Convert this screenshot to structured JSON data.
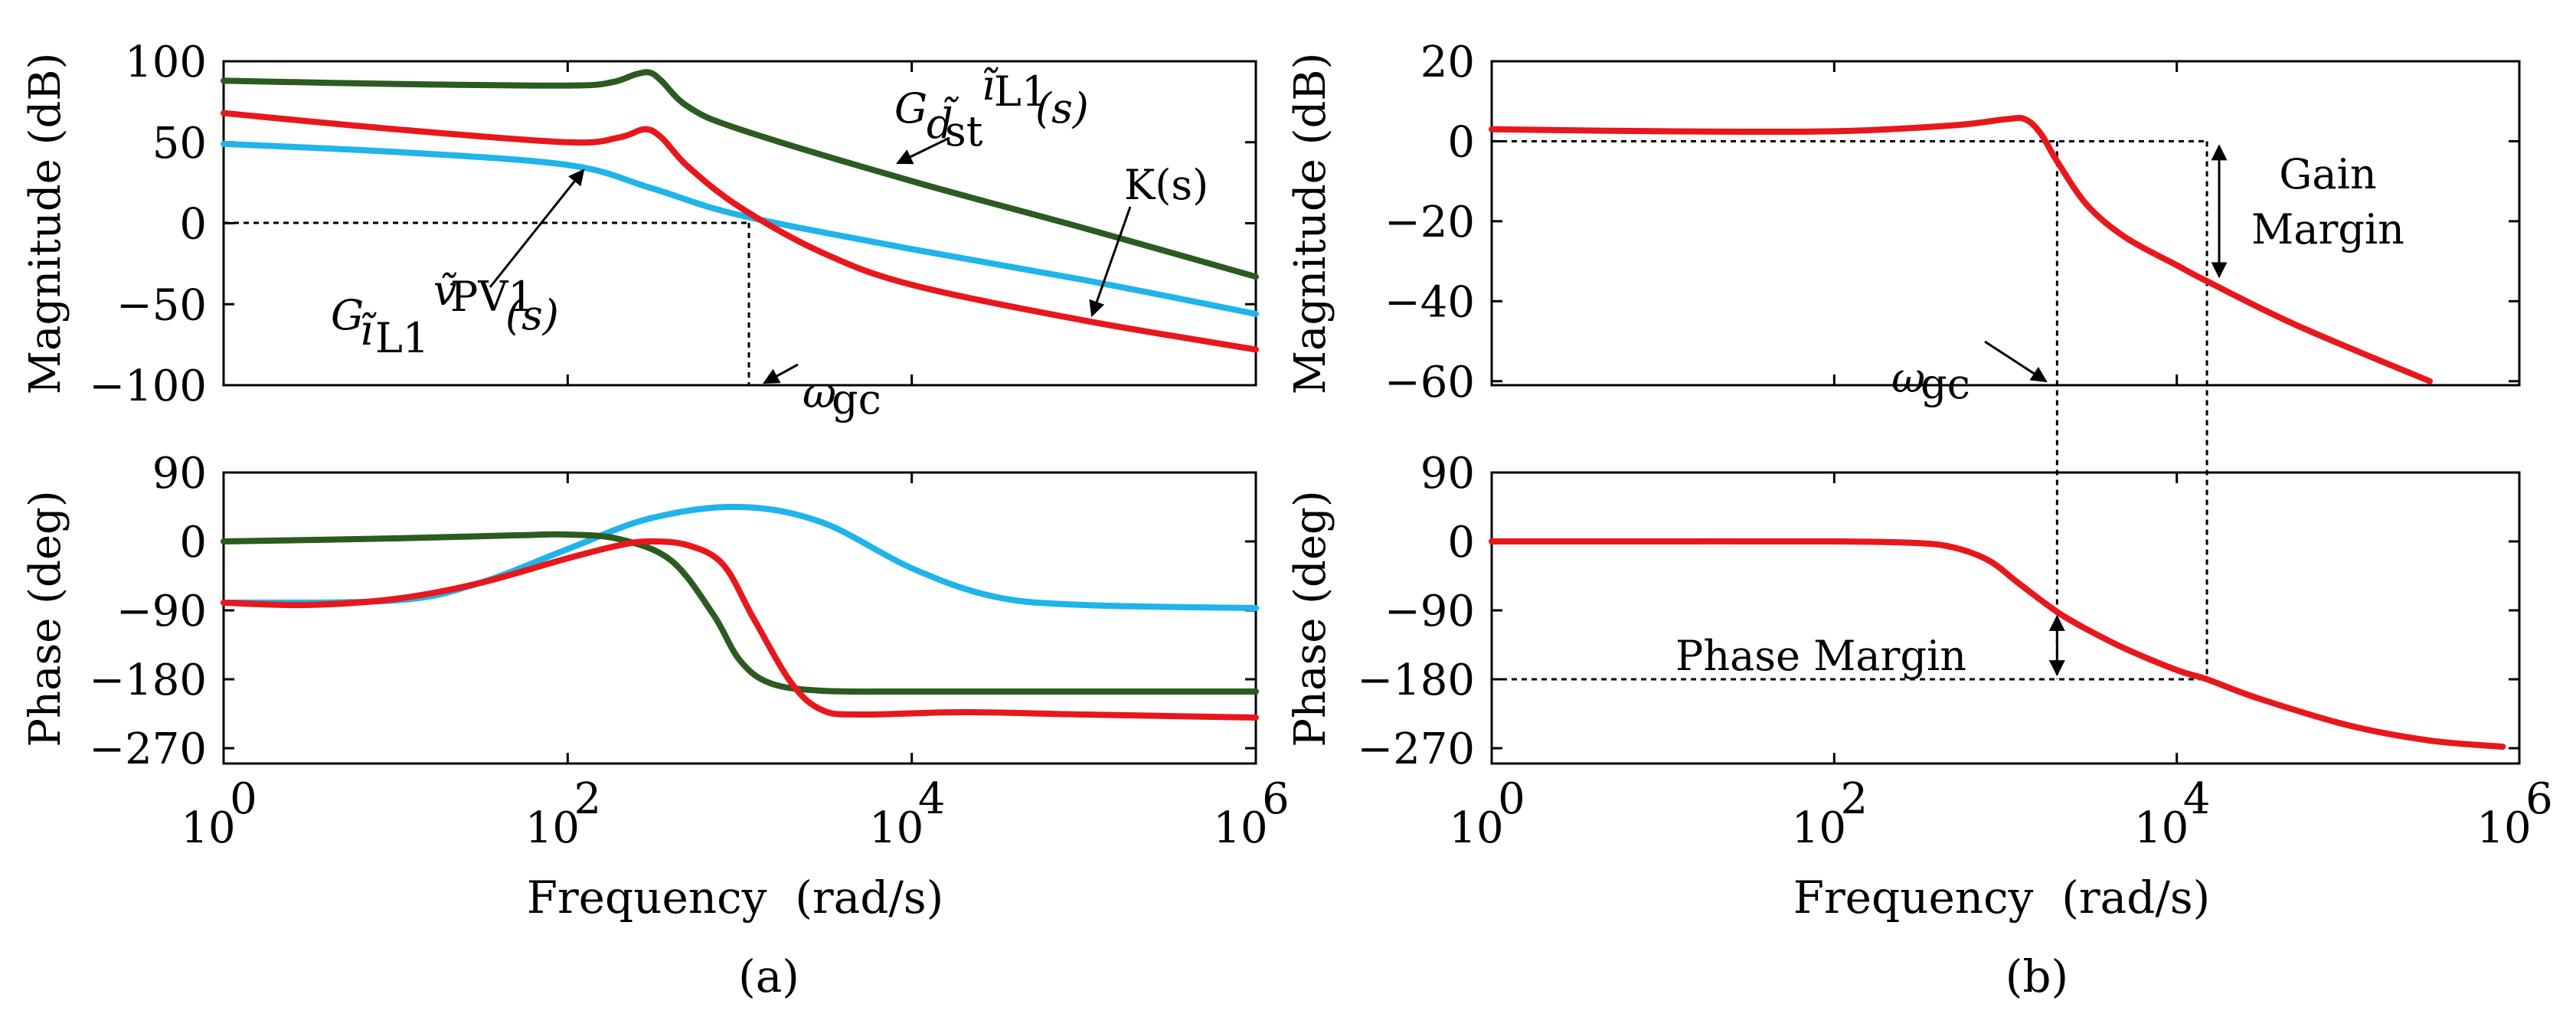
{
  "colors": {
    "K": "#1fb4ea",
    "G_il1_vpv1": "#e8171c",
    "G_dst_il1": "#2b5b21",
    "loop": "#e8171c"
  },
  "chart_data": [
    {
      "type": "line",
      "panel": "(a)",
      "title": "",
      "xscale": "log",
      "xlabel": "Frequency  (rad/s)",
      "xticks": [
        1,
        100,
        10000,
        1000000
      ],
      "xtick_labels": [
        {
          "base": "10",
          "exp": "0"
        },
        {
          "base": "10",
          "exp": "2"
        },
        {
          "base": "10",
          "exp": "4"
        },
        {
          "base": "10",
          "exp": "6"
        }
      ],
      "xlim": [
        1,
        1000000
      ],
      "subplots": [
        {
          "name": "magnitude",
          "ylabel": "Magnitude (dB)",
          "ylim": [
            -100,
            100
          ],
          "yticks": [
            100,
            50,
            0,
            -50,
            -100
          ],
          "ytick_labels": [
            "100",
            "50",
            "0",
            "−50",
            "−100"
          ],
          "series": [
            {
              "name": "G_dst_il1",
              "color_key": "G_dst_il1",
              "x": [
                1,
                10,
                100,
                180,
                250,
                300,
                350,
                500,
                1000,
                10000,
                100000,
                1000000
              ],
              "y": [
                88,
                86,
                85,
                87,
                92,
                93,
                88,
                72,
                58,
                26,
                -3,
                -33
              ]
            },
            {
              "name": "G_il1_vpv1",
              "color_key": "G_il1_vpv1",
              "x": [
                1,
                10,
                100,
                200,
                280,
                350,
                500,
                1000,
                3000,
                10000,
                100000,
                1000000
              ],
              "y": [
                68,
                58,
                50,
                53,
                58,
                53,
                35,
                10,
                -18,
                -38,
                -60,
                -78
              ]
            },
            {
              "name": "K",
              "color_key": "K",
              "x": [
                1,
                10,
                100,
                300,
                1000,
                10000,
                100000,
                1000000
              ],
              "y": [
                49,
                44,
                36,
                22,
                5,
                -16,
                -35,
                -56
              ]
            }
          ],
          "reference": {
            "y": 0,
            "x_end": 1100,
            "vertical_x": 1100
          }
        },
        {
          "name": "phase",
          "ylabel": "Phase (deg)",
          "ylim": [
            -290,
            90
          ],
          "yticks": [
            90,
            0,
            -90,
            -180,
            -270
          ],
          "ytick_labels": [
            "90",
            "0",
            "−90",
            "−180",
            "−270"
          ],
          "series": [
            {
              "name": "G_dst_il1",
              "color_key": "G_dst_il1",
              "x": [
                1,
                10,
                50,
                100,
                200,
                400,
                700,
                1000,
                1500,
                3000,
                10000,
                100000,
                1000000
              ],
              "y": [
                0,
                4,
                8,
                9,
                3,
                -25,
                -95,
                -155,
                -185,
                -195,
                -196,
                -196,
                -196
              ]
            },
            {
              "name": "G_il1_vpv1",
              "color_key": "G_il1_vpv1",
              "x": [
                1,
                3,
                10,
                30,
                100,
                200,
                300,
                500,
                800,
                1200,
                2000,
                3000,
                5000,
                20000,
                100000,
                1000000
              ],
              "y": [
                -80,
                -83,
                -75,
                -55,
                -22,
                -5,
                0,
                -5,
                -30,
                -100,
                -185,
                -220,
                -226,
                -223,
                -226,
                -230
              ]
            },
            {
              "name": "K",
              "color_key": "K",
              "x": [
                1,
                10,
                30,
                100,
                300,
                1000,
                3000,
                10000,
                30000,
                100000,
                1000000
              ],
              "y": [
                -80,
                -77,
                -55,
                -10,
                30,
                45,
                25,
                -35,
                -72,
                -83,
                -87
              ]
            }
          ]
        }
      ],
      "annotations": {
        "K": "K(s)",
        "G_dst_il1": {
          "main": "G",
          "sub": "d̃",
          "subsub": "st",
          "sup": "ĩ",
          "supsub": "L1",
          "tail": "(s)"
        },
        "G_il1_vpv1": {
          "main": "G",
          "sub": "ĩ",
          "subsub": "L1",
          "sup": "ṽ",
          "supsub": "PV1",
          "tail": "(s)"
        },
        "wgc": {
          "main": "ω",
          "sub": "gc"
        }
      }
    },
    {
      "type": "line",
      "panel": "(b)",
      "title": "",
      "xscale": "log",
      "xlabel": "Frequency  (rad/s)",
      "xticks": [
        1,
        100,
        10000,
        1000000
      ],
      "xtick_labels": [
        {
          "base": "10",
          "exp": "0"
        },
        {
          "base": "10",
          "exp": "2"
        },
        {
          "base": "10",
          "exp": "4"
        },
        {
          "base": "10",
          "exp": "6"
        }
      ],
      "xlim": [
        1,
        1000000
      ],
      "subplots": [
        {
          "name": "magnitude",
          "ylabel": "Magnitude (dB)",
          "ylim": [
            -61,
            20
          ],
          "yticks": [
            20,
            0,
            -20,
            -40,
            -60
          ],
          "ytick_labels": [
            "20",
            "0",
            "−20",
            "−40",
            "−60"
          ],
          "series": [
            {
              "name": "loop",
              "color_key": "loop",
              "x": [
                1,
                10,
                100,
                500,
                1000,
                1300,
                1600,
                2000,
                3000,
                5000,
                10000,
                15000,
                50000,
                300000
              ],
              "y": [
                3,
                2.5,
                2.5,
                4,
                5.5,
                5.5,
                2,
                -5,
                -16,
                -24,
                -31,
                -35,
                -46,
                -60
              ]
            }
          ],
          "reference": {
            "y": 0,
            "x_end": 15000
          }
        },
        {
          "name": "phase",
          "ylabel": "Phase (deg)",
          "ylim": [
            -290,
            90
          ],
          "yticks": [
            90,
            0,
            -90,
            -180,
            -270
          ],
          "ytick_labels": [
            "90",
            "0",
            "−90",
            "−180",
            "−270"
          ],
          "series": [
            {
              "name": "loop",
              "color_key": "loop",
              "x": [
                1,
                10,
                100,
                300,
                500,
                800,
                1200,
                2000,
                3000,
                5000,
                10000,
                15000,
                30000,
                100000,
                300000,
                800000
              ],
              "y": [
                0,
                0,
                0,
                -2,
                -8,
                -25,
                -55,
                -92,
                -115,
                -140,
                -168,
                -180,
                -205,
                -240,
                -260,
                -268
              ]
            }
          ],
          "reference": {
            "y": -180,
            "x_end": 15000
          }
        }
      ],
      "annotations": {
        "wgc": {
          "main": "ω",
          "sub": "gc"
        },
        "gain_margin": [
          "Gain",
          "Margin"
        ],
        "phase_margin": "Phase Margin",
        "wgc_freq": 2000,
        "w180_freq": 15000
      }
    }
  ]
}
